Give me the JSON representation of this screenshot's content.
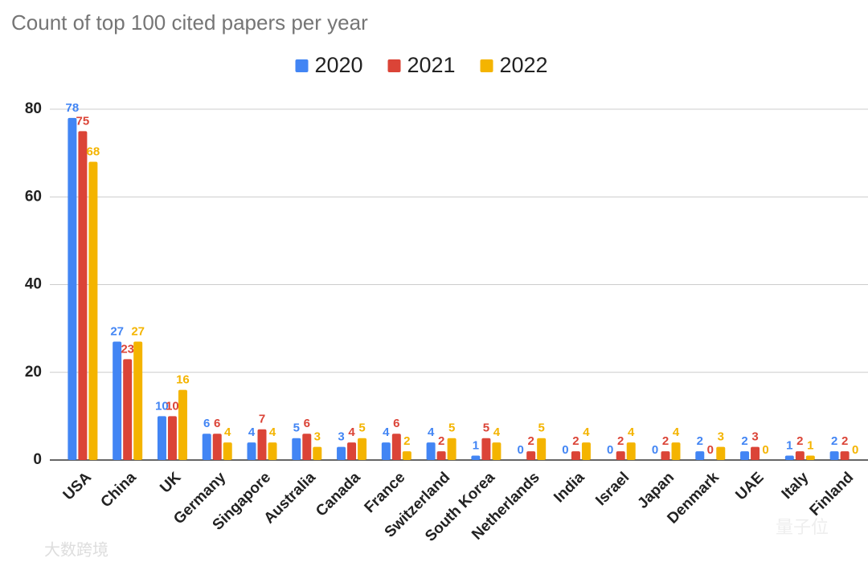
{
  "chart_data": {
    "type": "bar",
    "title": "Count of top 100 cited papers per year",
    "categories": [
      "USA",
      "China",
      "UK",
      "Germany",
      "Singapore",
      "Australia",
      "Canada",
      "France",
      "Switzerland",
      "South Korea",
      "Netherlands",
      "India",
      "Israel",
      "Japan",
      "Denmark",
      "UAE",
      "Italy",
      "Finland"
    ],
    "series": [
      {
        "name": "2020",
        "color": "#4285f4",
        "values": [
          78,
          27,
          10,
          6,
          4,
          5,
          3,
          4,
          4,
          1,
          0,
          0,
          0,
          0,
          2,
          2,
          1,
          2
        ]
      },
      {
        "name": "2021",
        "color": "#db4437",
        "values": [
          75,
          23,
          10,
          6,
          7,
          6,
          4,
          6,
          2,
          5,
          2,
          2,
          2,
          2,
          0,
          3,
          2,
          2
        ]
      },
      {
        "name": "2022",
        "color": "#f4b400",
        "values": [
          68,
          27,
          16,
          4,
          4,
          3,
          5,
          2,
          5,
          4,
          5,
          4,
          4,
          4,
          3,
          0,
          1,
          0
        ]
      }
    ],
    "ylim": [
      0,
      80
    ],
    "yticks": [
      0,
      20,
      40,
      60,
      80
    ],
    "grid": true,
    "legend": "top",
    "watermarks": [
      "大数跨境",
      "量子位"
    ]
  }
}
